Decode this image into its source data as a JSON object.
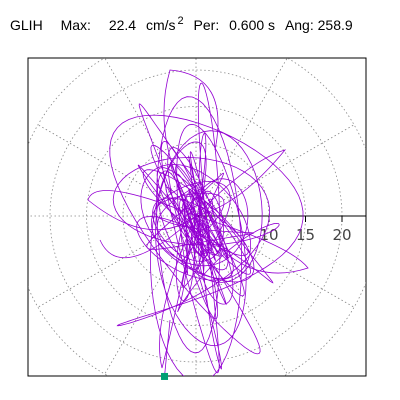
{
  "header": {
    "station": "GLIH",
    "max_label": "Max:",
    "max_value": "22.4",
    "max_unit": "cm/s",
    "max_unit_exp": "2",
    "per_label": "Per:",
    "per_value": "0.600 s",
    "ang_label": "Ang:",
    "ang_value": "258.9"
  },
  "chart_data": {
    "type": "polar-orbit",
    "radial_ticks": [
      "10",
      "15",
      "20"
    ],
    "radial_tick_values": [
      10,
      15,
      20
    ],
    "rings": [
      5,
      10,
      15,
      20,
      25
    ],
    "spokes_deg": [
      0,
      30,
      60,
      90,
      120,
      150,
      180,
      210,
      240,
      270,
      300,
      330
    ],
    "radial_max": 22.4,
    "peak_angle_deg": 258.9,
    "grid": true,
    "colors": {
      "trace": "#9400d3",
      "marker": "#009e73",
      "grid": "#888888",
      "frame": "#000000"
    }
  }
}
